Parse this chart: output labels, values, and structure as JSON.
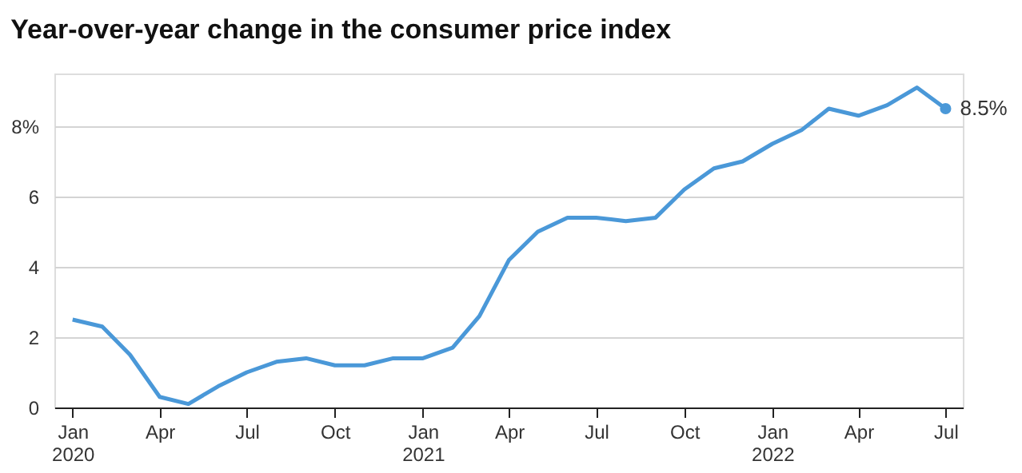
{
  "chart_data": {
    "type": "line",
    "title": "Year-over-year change in the consumer price index",
    "x": [
      "2020-01",
      "2020-02",
      "2020-03",
      "2020-04",
      "2020-05",
      "2020-06",
      "2020-07",
      "2020-08",
      "2020-09",
      "2020-10",
      "2020-11",
      "2020-12",
      "2021-01",
      "2021-02",
      "2021-03",
      "2021-04",
      "2021-05",
      "2021-06",
      "2021-07",
      "2021-08",
      "2021-09",
      "2021-10",
      "2021-11",
      "2021-12",
      "2022-01",
      "2022-02",
      "2022-03",
      "2022-04",
      "2022-05",
      "2022-06",
      "2022-07"
    ],
    "series": [
      {
        "color": "#4a98d8",
        "values": [
          2.5,
          2.3,
          1.5,
          0.3,
          0.1,
          0.6,
          1.0,
          1.3,
          1.4,
          1.2,
          1.2,
          1.4,
          1.4,
          1.7,
          2.6,
          4.2,
          5.0,
          5.4,
          5.4,
          5.3,
          5.4,
          6.2,
          6.8,
          7.0,
          7.5,
          7.9,
          8.5,
          8.3,
          8.6,
          9.1,
          8.5
        ]
      }
    ],
    "ylim": [
      0,
      9.5
    ],
    "yticks": [
      0,
      2,
      4,
      6,
      {
        "value": 8,
        "label": "8%"
      }
    ],
    "xlim": [
      "2019-12-13",
      "2022-07-19"
    ],
    "xticks": [
      {
        "value": "2020-01",
        "label": "Jan\n2020"
      },
      {
        "value": "2020-04",
        "label": "Apr"
      },
      {
        "value": "2020-07",
        "label": "Jul"
      },
      {
        "value": "2020-10",
        "label": "Oct"
      },
      {
        "value": "2021-01",
        "label": "Jan\n2021"
      },
      {
        "value": "2021-04",
        "label": "Apr"
      },
      {
        "value": "2021-07",
        "label": "Jul"
      },
      {
        "value": "2021-10",
        "label": "Oct"
      },
      {
        "value": "2022-01",
        "label": "Jan\n2022"
      },
      {
        "value": "2022-04",
        "label": "Apr"
      },
      {
        "value": "2022-07",
        "label": "Jul"
      }
    ],
    "annotations": [
      {
        "text": "8.5%",
        "x": "2022-07",
        "y": 8.5
      }
    ],
    "grid": "y",
    "legend": false,
    "marker": "none",
    "line_style": "solid"
  }
}
